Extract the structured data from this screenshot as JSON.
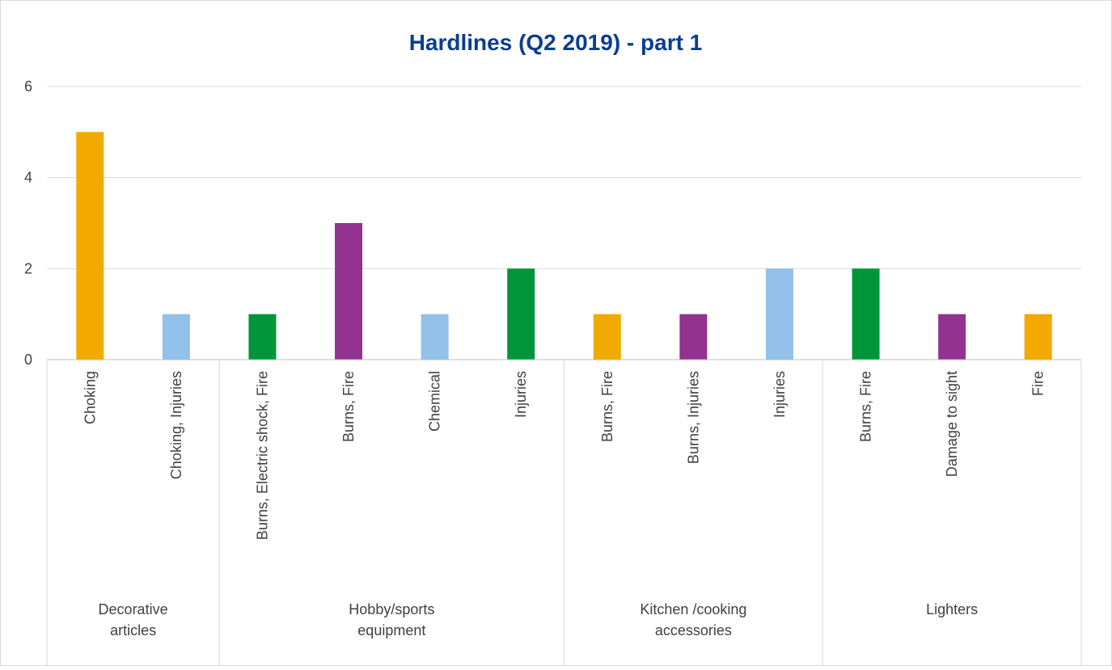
{
  "chart_data": {
    "type": "bar",
    "title": "Hardlines (Q2 2019) - part 1",
    "ylim": [
      0,
      6
    ],
    "yticks": [
      0,
      2,
      4,
      6
    ],
    "grid": true,
    "legend": "none",
    "groups": [
      {
        "label": "Decorative articles",
        "bars": [
          {
            "label": "Choking",
            "value": 5,
            "color": "#F2A900"
          },
          {
            "label": "Choking, Injuries",
            "value": 1,
            "color": "#92C1E9"
          }
        ]
      },
      {
        "label": "Hobby/sports equipment",
        "bars": [
          {
            "label": "Burns, Electric shock, Fire",
            "value": 1,
            "color": "#00953A"
          },
          {
            "label": "Burns, Fire",
            "value": 3,
            "color": "#93328E"
          },
          {
            "label": "Chemical",
            "value": 1,
            "color": "#92C1E9"
          },
          {
            "label": "Injuries",
            "value": 2,
            "color": "#00953A"
          }
        ]
      },
      {
        "label": "Kitchen /cooking accessories",
        "bars": [
          {
            "label": "Burns, Fire",
            "value": 1,
            "color": "#F2A900"
          },
          {
            "label": "Burns, Injuries",
            "value": 1,
            "color": "#93328E"
          },
          {
            "label": "Injuries",
            "value": 2,
            "color": "#92C1E9"
          }
        ]
      },
      {
        "label": "Lighters",
        "bars": [
          {
            "label": "Burns, Fire",
            "value": 2,
            "color": "#00953A"
          },
          {
            "label": "Damage to sight",
            "value": 1,
            "color": "#93328E"
          },
          {
            "label": "Fire",
            "value": 1,
            "color": "#F2A900"
          }
        ]
      }
    ]
  },
  "colors": {
    "title": "#0B3D91",
    "axis_text": "#404040",
    "gridline": "#D9D9D9",
    "axis_line": "#BFBFBF"
  }
}
